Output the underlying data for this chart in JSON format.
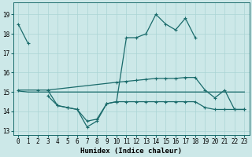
{
  "xlabel": "Humidex (Indice chaleur)",
  "background_color": "#cce8e8",
  "grid_color": "#aad4d4",
  "line_color": "#1a6b6b",
  "xlim": [
    -0.5,
    23.5
  ],
  "ylim": [
    12.8,
    19.6
  ],
  "yticks": [
    13,
    14,
    15,
    16,
    17,
    18,
    19
  ],
  "xticks": [
    0,
    1,
    2,
    3,
    4,
    5,
    6,
    7,
    8,
    9,
    10,
    11,
    12,
    13,
    14,
    15,
    16,
    17,
    18,
    19,
    20,
    21,
    22,
    23
  ],
  "line1_x": [
    0,
    1
  ],
  "line1_y": [
    18.5,
    17.5
  ],
  "line2_x": [
    3,
    4,
    5,
    6,
    7,
    8,
    9,
    10,
    11,
    12,
    13,
    14,
    15,
    16,
    17,
    18
  ],
  "line2_y": [
    15.1,
    14.3,
    14.2,
    14.1,
    13.2,
    13.5,
    14.4,
    14.5,
    17.8,
    17.8,
    18.0,
    19.0,
    18.5,
    18.2,
    18.8,
    17.8
  ],
  "line3_x": [
    0,
    2,
    3,
    10,
    11,
    12,
    13,
    14,
    15,
    16,
    17,
    18,
    19,
    20,
    21,
    22,
    23
  ],
  "line3_y": [
    15.1,
    15.1,
    15.1,
    15.5,
    15.55,
    15.6,
    15.65,
    15.7,
    15.7,
    15.7,
    15.75,
    15.75,
    15.1,
    14.7,
    15.1,
    14.1,
    14.1
  ],
  "line4_x": [
    3,
    4,
    5,
    6,
    7,
    8,
    9,
    10,
    11,
    12,
    13,
    14,
    15,
    16,
    17,
    18,
    19,
    20,
    21,
    22,
    23
  ],
  "line4_y": [
    14.8,
    14.3,
    14.2,
    14.1,
    13.5,
    13.6,
    14.4,
    14.5,
    14.5,
    14.5,
    14.5,
    14.5,
    14.5,
    14.5,
    14.5,
    14.5,
    14.2,
    14.1,
    14.1,
    14.1,
    14.1
  ],
  "line5_x": [
    0,
    1,
    2,
    3,
    4,
    5,
    6,
    7,
    8,
    9,
    10,
    11,
    12,
    13,
    14,
    15,
    16,
    17,
    18,
    19,
    20,
    21,
    22,
    23
  ],
  "line5_y": [
    15.05,
    15.0,
    15.0,
    15.0,
    15.0,
    15.0,
    15.0,
    15.0,
    15.0,
    15.0,
    15.0,
    15.0,
    15.0,
    15.0,
    15.0,
    15.0,
    15.0,
    15.0,
    15.0,
    15.0,
    15.0,
    15.0,
    15.0,
    15.0
  ]
}
